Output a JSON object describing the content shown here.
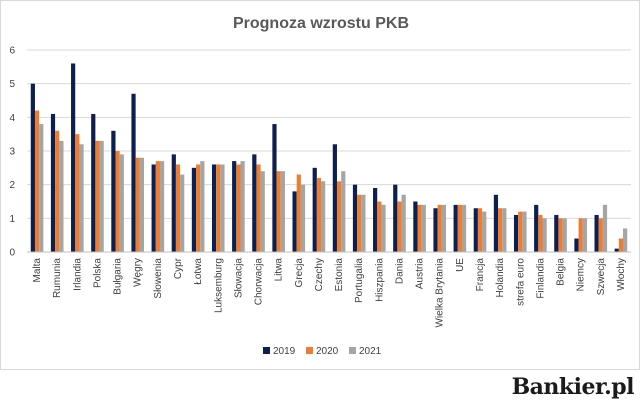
{
  "chart_data": {
    "type": "bar",
    "title": "Prognoza wzrostu PKB",
    "xlabel": "",
    "ylabel": "",
    "ylim": [
      0,
      6
    ],
    "yticks": [
      0,
      1,
      2,
      3,
      4,
      5,
      6
    ],
    "grid": true,
    "legend_position": "bottom",
    "categories": [
      "Malta",
      "Rumunia",
      "Irlandia",
      "Polska",
      "Bułgaria",
      "Węgry",
      "Słowenia",
      "Cypr",
      "Łotwa",
      "Luksemburg",
      "Słowacja",
      "Chorwacja",
      "Litwa",
      "Grecja",
      "Czechy",
      "Estonia",
      "Portugalia",
      "Hiszpania",
      "Dania",
      "Austria",
      "Wielka Brytania",
      "UE",
      "Francja",
      "Holandia",
      "strefa euro",
      "Finlandia",
      "Belgia",
      "Niemcy",
      "Szwecja",
      "Włochy"
    ],
    "series": [
      {
        "name": "2019",
        "color": "#0d1f4f",
        "values": [
          5.0,
          4.1,
          5.6,
          4.1,
          3.6,
          4.7,
          2.6,
          2.9,
          2.5,
          2.6,
          2.7,
          2.9,
          3.8,
          1.8,
          2.5,
          3.2,
          2.0,
          1.9,
          2.0,
          1.5,
          1.3,
          1.4,
          1.3,
          1.7,
          1.1,
          1.4,
          1.1,
          0.4,
          1.1,
          0.1
        ]
      },
      {
        "name": "2020",
        "color": "#ed7d31",
        "values": [
          4.2,
          3.6,
          3.5,
          3.3,
          3.0,
          2.8,
          2.7,
          2.6,
          2.6,
          2.6,
          2.6,
          2.6,
          2.4,
          2.3,
          2.2,
          2.1,
          1.7,
          1.5,
          1.5,
          1.4,
          1.4,
          1.4,
          1.3,
          1.3,
          1.2,
          1.1,
          1.0,
          1.0,
          1.0,
          0.4
        ]
      },
      {
        "name": "2021",
        "color": "#a5a5a5",
        "values": [
          3.8,
          3.3,
          3.2,
          3.3,
          2.9,
          2.8,
          2.7,
          2.3,
          2.7,
          2.6,
          2.7,
          2.4,
          2.4,
          2.0,
          2.1,
          2.4,
          1.7,
          1.4,
          1.7,
          1.4,
          1.4,
          1.4,
          1.2,
          1.3,
          1.2,
          1.0,
          1.0,
          1.0,
          1.4,
          0.7
        ]
      }
    ]
  },
  "brand": {
    "logo_text": "Bankier.pl"
  }
}
